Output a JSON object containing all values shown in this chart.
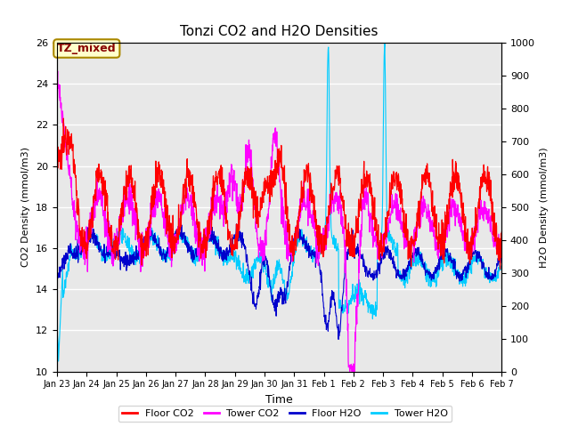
{
  "title": "Tonzi CO2 and H2O Densities",
  "xlabel": "Time",
  "ylabel_left": "CO2 Density (mmol/m3)",
  "ylabel_right": "H2O Density (mmol/m3)",
  "ylim_left": [
    10,
    26
  ],
  "ylim_right": [
    0,
    1000
  ],
  "yticks_left": [
    10,
    12,
    14,
    16,
    18,
    20,
    22,
    24,
    26
  ],
  "yticks_right": [
    0,
    100,
    200,
    300,
    400,
    500,
    600,
    700,
    800,
    900,
    1000
  ],
  "annotation_text": "TZ_mixed",
  "annotation_color": "#880000",
  "annotation_bg": "#ffffcc",
  "annotation_edge": "#aa8800",
  "colors": {
    "floor_co2": "#ff0000",
    "tower_co2": "#ff00ff",
    "floor_h2o": "#0000cc",
    "tower_h2o": "#00ccff"
  },
  "legend_labels": [
    "Floor CO2",
    "Tower CO2",
    "Floor H2O",
    "Tower H2O"
  ],
  "bg_color": "#e8e8e8",
  "fig_bg": "#ffffff",
  "n_points": 1500,
  "xtick_labels": [
    "Jan 23",
    "Jan 24",
    "Jan 25",
    "Jan 26",
    "Jan 27",
    "Jan 28",
    "Jan 29",
    "Jan 30",
    "Jan 31",
    "Feb 1",
    "Feb 2",
    "Feb 3",
    "Feb 4",
    "Feb 5",
    "Feb 6",
    "Feb 7"
  ],
  "xtick_positions": [
    0,
    1,
    2,
    3,
    4,
    5,
    6,
    7,
    8,
    9,
    10,
    11,
    12,
    13,
    14,
    15
  ]
}
